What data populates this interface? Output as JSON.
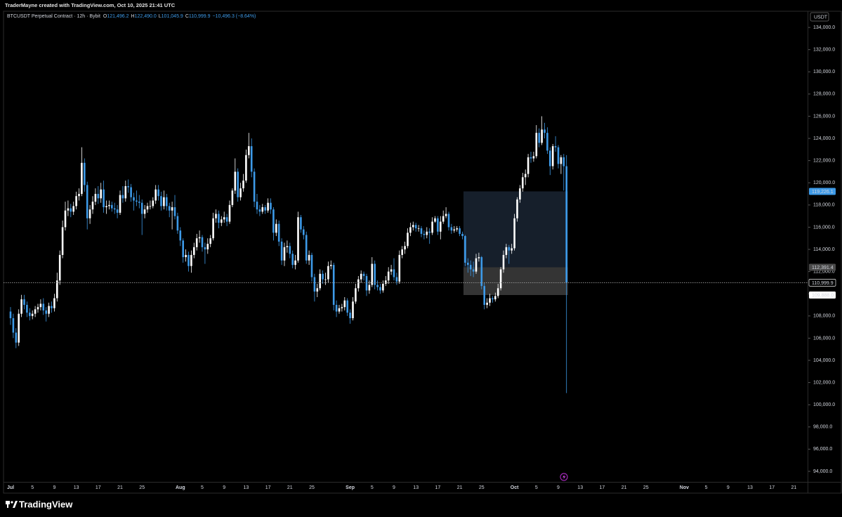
{
  "header": "TraderMayne created with TradingView.com, Oct 10, 2025 21:41 UTC",
  "logo": "TradingView",
  "chart_data": {
    "type": "candlestick",
    "symbol": "BTCUSDT Perpetual Contract · 12h · Bybit",
    "legend_items": [
      {
        "key": "O",
        "label": "121,496.2"
      },
      {
        "key": "H",
        "label": "122,490.0"
      },
      {
        "key": "L",
        "label": "101,045.9"
      },
      {
        "key": "C",
        "label": "110,999.9"
      }
    ],
    "change_label": "−10,496.3 (−8.64%)",
    "currency": "USDT",
    "up_color": "#ffffff",
    "down_color": "#3d9ae8",
    "grid": false,
    "ylim": [
      93050,
      135460
    ],
    "yticks": [
      {
        "value": 94000,
        "label": "94,000.0"
      },
      {
        "value": 96000,
        "label": "96,000.0"
      },
      {
        "value": 98000,
        "label": "98,000.0"
      },
      {
        "value": 100000,
        "label": "100,000.0"
      },
      {
        "value": 102000,
        "label": "102,000.0"
      },
      {
        "value": 104000,
        "label": "104,000.0"
      },
      {
        "value": 106000,
        "label": "106,000.0"
      },
      {
        "value": 108000,
        "label": "108,000.0"
      },
      {
        "value": 110000,
        "label": "110,000.0"
      },
      {
        "value": 112000,
        "label": "112,000.0"
      },
      {
        "value": 114000,
        "label": "114,000.0"
      },
      {
        "value": 116000,
        "label": "116,000.0"
      },
      {
        "value": 118000,
        "label": "118,000.0"
      },
      {
        "value": 120000,
        "label": "120,000.0"
      },
      {
        "value": 122000,
        "label": "122,000.0"
      },
      {
        "value": 124000,
        "label": "124,000.0"
      },
      {
        "value": 126000,
        "label": "126,000.0"
      },
      {
        "value": 128000,
        "label": "128,000.0"
      },
      {
        "value": 130000,
        "label": "130,000.0"
      },
      {
        "value": 132000,
        "label": "132,000.0"
      },
      {
        "value": 134000,
        "label": "134,000.0"
      }
    ],
    "xticks": [
      "Jul",
      "5",
      "9",
      "13",
      "17",
      "21",
      "25",
      "Aug",
      "5",
      "9",
      "13",
      "17",
      "21",
      "25",
      "Sep",
      "5",
      "9",
      "13",
      "17",
      "21",
      "25",
      "Oct",
      "5",
      "9",
      "13",
      "17",
      "21",
      "25",
      "Nov",
      "5",
      "9",
      "13",
      "17",
      "21"
    ],
    "zones": [
      {
        "top": 119226.1,
        "bottom": 112391.4,
        "color": "#182230"
      },
      {
        "top": 112391.4,
        "bottom": 109888.0,
        "color": "#3a3a3a"
      }
    ],
    "price_markers": [
      {
        "value": 119226.1,
        "label": "119,226.1",
        "bg": "#3d9ae8",
        "text_color": "#ffffff"
      },
      {
        "value": 112391.4,
        "label": "112,391.4",
        "bg": "#4a4a4a",
        "text_color": "#ffffff"
      },
      {
        "value": 110999.9,
        "label": "110,999.9",
        "bg": "#000000",
        "text_color": "#ffffff",
        "price_line": true
      },
      {
        "value": 109888.0,
        "label": "109,888.0",
        "bg": "#ffffff",
        "text_color": "#000000"
      }
    ],
    "ohlc": [
      [
        108400,
        108800,
        107200,
        107800
      ],
      [
        107800,
        108200,
        106000,
        106500
      ],
      [
        106500,
        106900,
        105100,
        105600
      ],
      [
        105600,
        108600,
        105300,
        108200
      ],
      [
        108200,
        109900,
        107900,
        109500
      ],
      [
        109500,
        109900,
        108600,
        109000
      ],
      [
        109000,
        109300,
        107900,
        108300
      ],
      [
        108300,
        108700,
        107600,
        108000
      ],
      [
        108000,
        108500,
        107700,
        108200
      ],
      [
        108200,
        108900,
        107900,
        108600
      ],
      [
        108600,
        109100,
        108300,
        108800
      ],
      [
        108800,
        109500,
        108500,
        109100
      ],
      [
        109100,
        109600,
        108100,
        108500
      ],
      [
        108500,
        108800,
        107500,
        108200
      ],
      [
        108200,
        109200,
        107900,
        108900
      ],
      [
        108900,
        109300,
        108300,
        108700
      ],
      [
        108700,
        110000,
        108400,
        109600
      ],
      [
        109600,
        111900,
        109300,
        111200
      ],
      [
        111200,
        113900,
        110800,
        113500
      ],
      [
        113500,
        116600,
        113200,
        116000
      ],
      [
        116000,
        118300,
        115700,
        117500
      ],
      [
        117500,
        118400,
        117000,
        117700
      ],
      [
        117700,
        118100,
        116900,
        117400
      ],
      [
        117400,
        118300,
        117100,
        117900
      ],
      [
        117900,
        119200,
        117600,
        118800
      ],
      [
        118800,
        119500,
        118400,
        119000
      ],
      [
        119000,
        123200,
        118800,
        121800
      ],
      [
        121800,
        122200,
        119200,
        119800
      ],
      [
        119800,
        120100,
        115800,
        116800
      ],
      [
        116800,
        118000,
        116300,
        117600
      ],
      [
        117600,
        118800,
        117200,
        118300
      ],
      [
        118300,
        119500,
        118000,
        119000
      ],
      [
        119000,
        119700,
        118100,
        118600
      ],
      [
        118600,
        120000,
        118200,
        119400
      ],
      [
        119400,
        120200,
        117300,
        117800
      ],
      [
        117800,
        118400,
        117200,
        117900
      ],
      [
        117900,
        118400,
        117600,
        118000
      ],
      [
        118000,
        118300,
        117400,
        117700
      ],
      [
        117700,
        118200,
        117200,
        117600
      ],
      [
        117600,
        118000,
        116800,
        117300
      ],
      [
        117300,
        119300,
        117100,
        118900
      ],
      [
        118900,
        119700,
        118200,
        118600
      ],
      [
        118600,
        120200,
        118300,
        119700
      ],
      [
        119700,
        120300,
        119100,
        119600
      ],
      [
        119600,
        119900,
        118300,
        118700
      ],
      [
        118700,
        119100,
        117500,
        118400
      ],
      [
        118400,
        119300,
        117900,
        118300
      ],
      [
        118300,
        118900,
        117700,
        118200
      ],
      [
        118200,
        118500,
        115300,
        117200
      ],
      [
        117200,
        118000,
        116800,
        117600
      ],
      [
        117600,
        118200,
        117300,
        117900
      ],
      [
        117900,
        118400,
        117600,
        117900
      ],
      [
        117900,
        118700,
        117700,
        118400
      ],
      [
        118400,
        119800,
        118100,
        119400
      ],
      [
        119400,
        119800,
        118400,
        118800
      ],
      [
        118800,
        119200,
        117500,
        117900
      ],
      [
        117900,
        119300,
        117600,
        118700
      ],
      [
        118700,
        119000,
        117500,
        117900
      ],
      [
        117900,
        118200,
        116900,
        117500
      ],
      [
        117500,
        118300,
        115800,
        117800
      ],
      [
        117800,
        118900,
        116700,
        117000
      ],
      [
        117000,
        117300,
        115400,
        115700
      ],
      [
        115700,
        116000,
        114300,
        114800
      ],
      [
        114800,
        115000,
        112800,
        113300
      ],
      [
        113300,
        114000,
        112900,
        113500
      ],
      [
        113500,
        113800,
        112000,
        112500
      ],
      [
        112500,
        113900,
        111900,
        113500
      ],
      [
        113500,
        114600,
        113200,
        114200
      ],
      [
        114200,
        115400,
        113900,
        115000
      ],
      [
        115000,
        115700,
        114600,
        115100
      ],
      [
        115100,
        115300,
        113800,
        114200
      ],
      [
        114200,
        114600,
        112700,
        114000
      ],
      [
        114000,
        115000,
        113600,
        114500
      ],
      [
        114500,
        115300,
        114200,
        115000
      ],
      [
        115000,
        117300,
        114800,
        116800
      ],
      [
        116800,
        117600,
        116400,
        117200
      ],
      [
        117200,
        117500,
        115900,
        116400
      ],
      [
        116400,
        117000,
        116100,
        116700
      ],
      [
        116700,
        117400,
        116400,
        116900
      ],
      [
        116900,
        117200,
        116100,
        116500
      ],
      [
        116500,
        118400,
        116300,
        118000
      ],
      [
        118000,
        119500,
        117800,
        119300
      ],
      [
        119300,
        122200,
        119000,
        121000
      ],
      [
        121000,
        121300,
        118300,
        118700
      ],
      [
        118700,
        120000,
        118400,
        119500
      ],
      [
        119500,
        120800,
        119200,
        120200
      ],
      [
        120200,
        123000,
        120000,
        122500
      ],
      [
        122500,
        124500,
        122200,
        123300
      ],
      [
        123300,
        124000,
        120500,
        121000
      ],
      [
        121000,
        121300,
        117800,
        118300
      ],
      [
        118300,
        119000,
        117200,
        117600
      ],
      [
        117600,
        118000,
        117000,
        117400
      ],
      [
        117400,
        118100,
        117200,
        117800
      ],
      [
        117800,
        118000,
        117200,
        117500
      ],
      [
        117500,
        118600,
        117300,
        118200
      ],
      [
        118200,
        118600,
        117200,
        117600
      ],
      [
        117600,
        117800,
        114800,
        115500
      ],
      [
        115500,
        116700,
        115200,
        116300
      ],
      [
        116300,
        116600,
        114300,
        114700
      ],
      [
        114700,
        115000,
        112600,
        113000
      ],
      [
        113000,
        114600,
        112500,
        114200
      ],
      [
        114200,
        114800,
        113700,
        114300
      ],
      [
        114300,
        114600,
        113200,
        113600
      ],
      [
        113600,
        113900,
        112300,
        112600
      ],
      [
        112600,
        113500,
        112200,
        113000
      ],
      [
        113000,
        117400,
        112800,
        116900
      ],
      [
        116900,
        117100,
        115500,
        115800
      ],
      [
        115800,
        116100,
        114900,
        115300
      ],
      [
        115300,
        115600,
        112700,
        113000
      ],
      [
        113000,
        113900,
        112600,
        113500
      ],
      [
        113500,
        113700,
        111100,
        111500
      ],
      [
        111500,
        111800,
        109300,
        110200
      ],
      [
        110200,
        110900,
        109700,
        110500
      ],
      [
        110500,
        112200,
        110300,
        111800
      ],
      [
        111800,
        112100,
        110900,
        111300
      ],
      [
        111300,
        111900,
        110800,
        111300
      ],
      [
        111300,
        112900,
        111000,
        112500
      ],
      [
        112500,
        113000,
        112200,
        112600
      ],
      [
        112600,
        112800,
        108500,
        109000
      ],
      [
        109000,
        109400,
        107900,
        108400
      ],
      [
        108400,
        109000,
        108200,
        108700
      ],
      [
        108700,
        109100,
        108400,
        108800
      ],
      [
        108800,
        109700,
        108500,
        109400
      ],
      [
        109400,
        109600,
        108000,
        108300
      ],
      [
        108300,
        108600,
        107300,
        107800
      ],
      [
        107800,
        109700,
        107600,
        109300
      ],
      [
        109300,
        110900,
        109100,
        110500
      ],
      [
        110500,
        111600,
        110200,
        111300
      ],
      [
        111300,
        112100,
        111000,
        111800
      ],
      [
        111800,
        112000,
        111200,
        111600
      ],
      [
        111600,
        111800,
        109800,
        110300
      ],
      [
        110300,
        111200,
        110000,
        110800
      ],
      [
        110800,
        113300,
        110600,
        112700
      ],
      [
        112700,
        113000,
        110400,
        110800
      ],
      [
        110800,
        111200,
        110300,
        110600
      ],
      [
        110600,
        110900,
        110000,
        110300
      ],
      [
        110300,
        111200,
        110100,
        110900
      ],
      [
        110900,
        111600,
        110700,
        111200
      ],
      [
        111200,
        112400,
        110900,
        112000
      ],
      [
        112000,
        112600,
        111700,
        112200
      ],
      [
        112200,
        113200,
        111200,
        111500
      ],
      [
        111500,
        111900,
        110800,
        111100
      ],
      [
        111100,
        113900,
        110900,
        113500
      ],
      [
        113500,
        114300,
        113200,
        114000
      ],
      [
        114000,
        114700,
        113600,
        114300
      ],
      [
        114300,
        115900,
        114100,
        115500
      ],
      [
        115500,
        116400,
        115200,
        116000
      ],
      [
        116000,
        116500,
        115700,
        116200
      ],
      [
        116200,
        116400,
        115600,
        115900
      ],
      [
        115900,
        116200,
        115600,
        115900
      ],
      [
        115900,
        116100,
        115100,
        115400
      ],
      [
        115400,
        115700,
        114900,
        115300
      ],
      [
        115300,
        116000,
        115000,
        115600
      ],
      [
        115600,
        115900,
        114500,
        115500
      ],
      [
        115500,
        116900,
        115300,
        116500
      ],
      [
        116500,
        117000,
        116400,
        116800
      ],
      [
        116800,
        117000,
        115300,
        115600
      ],
      [
        115600,
        117000,
        114900,
        116500
      ],
      [
        116500,
        117500,
        116300,
        117000
      ],
      [
        117000,
        117800,
        116800,
        117200
      ],
      [
        117200,
        117400,
        115700,
        116000
      ],
      [
        116000,
        116300,
        115400,
        115700
      ],
      [
        115700,
        116100,
        115500,
        115800
      ],
      [
        115800,
        116100,
        115600,
        115900
      ],
      [
        115900,
        116100,
        115200,
        115400
      ],
      [
        115400,
        115600,
        114900,
        115200
      ],
      [
        115200,
        115300,
        112500,
        112800
      ],
      [
        112800,
        113200,
        111900,
        112600
      ],
      [
        112600,
        113000,
        111600,
        112200
      ],
      [
        112200,
        112900,
        111500,
        112000
      ],
      [
        112000,
        113600,
        111800,
        113200
      ],
      [
        113200,
        113700,
        112900,
        113300
      ],
      [
        113300,
        113400,
        110400,
        110700
      ],
      [
        110700,
        111000,
        108600,
        109000
      ],
      [
        109000,
        109600,
        108700,
        109200
      ],
      [
        109200,
        110000,
        108900,
        109600
      ],
      [
        109600,
        109800,
        109200,
        109500
      ],
      [
        109500,
        110100,
        109300,
        109800
      ],
      [
        109800,
        110900,
        109600,
        110500
      ],
      [
        110500,
        112400,
        110300,
        112200
      ],
      [
        112200,
        113900,
        111900,
        113500
      ],
      [
        113500,
        114500,
        113200,
        114200
      ],
      [
        114200,
        114400,
        112700,
        113900
      ],
      [
        113900,
        114500,
        113600,
        114100
      ],
      [
        114100,
        117200,
        113900,
        116800
      ],
      [
        116800,
        118700,
        116500,
        118500
      ],
      [
        118500,
        119800,
        118200,
        119500
      ],
      [
        119500,
        120900,
        119200,
        120500
      ],
      [
        120500,
        121200,
        119800,
        120800
      ],
      [
        120800,
        122600,
        120500,
        122300
      ],
      [
        122300,
        122800,
        121800,
        122200
      ],
      [
        122200,
        122800,
        121900,
        122400
      ],
      [
        122400,
        125200,
        122200,
        124500
      ],
      [
        124500,
        124900,
        123200,
        123600
      ],
      [
        123600,
        126000,
        123400,
        124800
      ],
      [
        124800,
        125400,
        124000,
        124500
      ],
      [
        124500,
        125000,
        122600,
        122900
      ],
      [
        122900,
        123200,
        120700,
        121500
      ],
      [
        121500,
        123500,
        121200,
        123300
      ],
      [
        123300,
        124200,
        122800,
        123200
      ],
      [
        123200,
        123400,
        121300,
        121700
      ],
      [
        121700,
        122500,
        120800,
        122300
      ],
      [
        122300,
        122600,
        119300,
        121496.2
      ],
      [
        121496.2,
        122490,
        101045.9,
        110999.9
      ]
    ]
  }
}
